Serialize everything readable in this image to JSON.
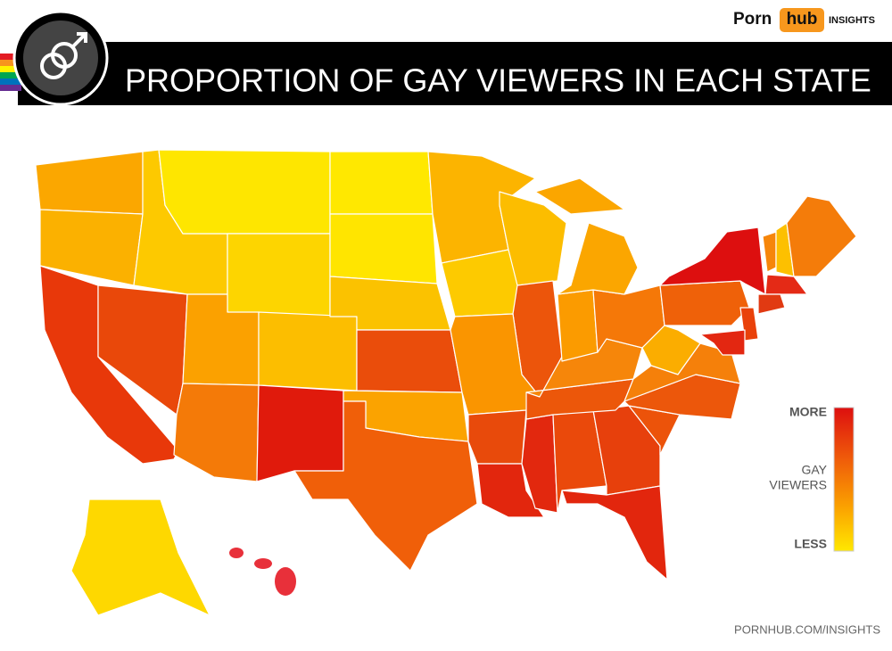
{
  "header": {
    "brand": "Porn",
    "brand_highlight": "hub",
    "brand_suffix": "INSIGHTS",
    "title": "PROPORTION OF GAY VIEWERS IN EACH STATE"
  },
  "legend": {
    "top": "MORE",
    "middle": [
      "GAY",
      "VIEWERS"
    ],
    "bottom": "LESS"
  },
  "footer": "PORNHUB.COM/INSIGHTS"
}
